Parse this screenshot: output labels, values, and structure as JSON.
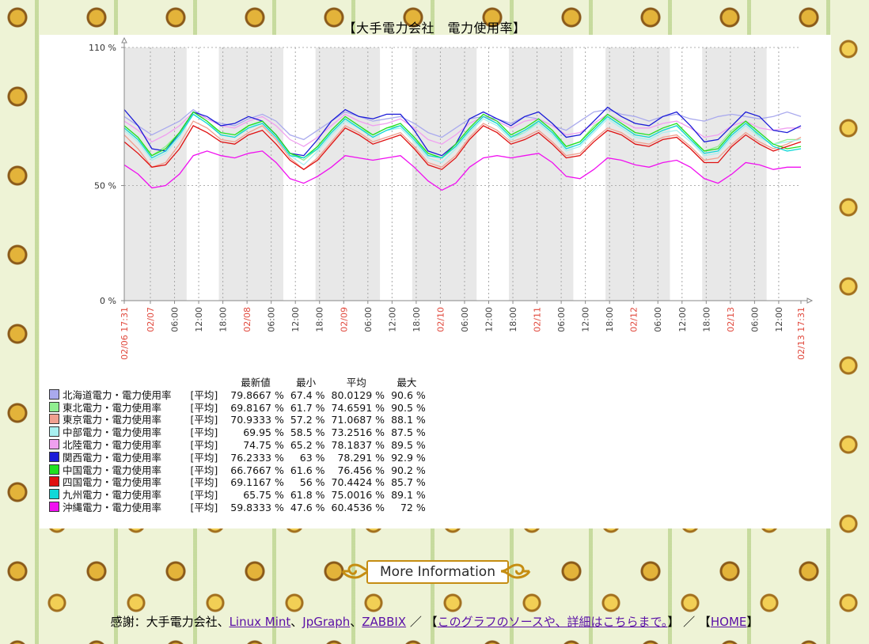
{
  "page_title": "【大手電力会社　電力使用率】",
  "chart_data": {
    "type": "line",
    "y_axis": {
      "min": 0,
      "max": 110,
      "ticks": [
        {
          "value": 0,
          "label": "0 %"
        },
        {
          "value": 50,
          "label": "50 %"
        },
        {
          "value": 110,
          "label": "110 %"
        }
      ]
    },
    "x_axis": {
      "start": "02/06 17:31",
      "end": "02/13 17:31",
      "start_hours": 17.517,
      "end_hours": 185.517,
      "ticks": [
        {
          "h": 17.517,
          "label": "02/06 17:31",
          "red": true
        },
        {
          "h": 24,
          "label": "02/07",
          "red": true
        },
        {
          "h": 30,
          "label": "06:00"
        },
        {
          "h": 36,
          "label": "12:00"
        },
        {
          "h": 42,
          "label": "18:00"
        },
        {
          "h": 48,
          "label": "02/08",
          "red": true
        },
        {
          "h": 54,
          "label": "06:00"
        },
        {
          "h": 60,
          "label": "12:00"
        },
        {
          "h": 66,
          "label": "18:00"
        },
        {
          "h": 72,
          "label": "02/09",
          "red": true
        },
        {
          "h": 78,
          "label": "06:00"
        },
        {
          "h": 84,
          "label": "12:00"
        },
        {
          "h": 90,
          "label": "18:00"
        },
        {
          "h": 96,
          "label": "02/10",
          "red": true
        },
        {
          "h": 102,
          "label": "06:00"
        },
        {
          "h": 108,
          "label": "12:00"
        },
        {
          "h": 114,
          "label": "18:00"
        },
        {
          "h": 120,
          "label": "02/11",
          "red": true
        },
        {
          "h": 126,
          "label": "06:00"
        },
        {
          "h": 132,
          "label": "12:00"
        },
        {
          "h": 138,
          "label": "18:00"
        },
        {
          "h": 144,
          "label": "02/12",
          "red": true
        },
        {
          "h": 150,
          "label": "06:00"
        },
        {
          "h": 156,
          "label": "12:00"
        },
        {
          "h": 162,
          "label": "18:00"
        },
        {
          "h": 168,
          "label": "02/13",
          "red": true
        },
        {
          "h": 174,
          "label": "06:00"
        },
        {
          "h": 180,
          "label": "12:00"
        },
        {
          "h": 185.517,
          "label": "02/13 17:31",
          "red": true
        }
      ]
    },
    "night_bands_hours": [
      [
        17.517,
        33
      ],
      [
        41,
        57
      ],
      [
        65,
        81
      ],
      [
        89,
        105
      ],
      [
        113,
        129
      ],
      [
        137,
        153
      ],
      [
        161,
        177
      ]
    ],
    "series": [
      {
        "name": "北海道電力・電力使用率",
        "color": "#aaaaee",
        "last": "79.8667 %",
        "min": "67.4 %",
        "avg": "80.0129 %",
        "max": "90.6 %",
        "values": [
          80,
          76,
          72,
          75,
          78,
          83,
          79,
          77,
          76,
          79,
          81,
          78,
          72,
          70,
          74,
          78,
          82,
          80,
          78,
          79,
          80,
          77,
          73,
          71,
          75,
          79,
          80,
          79,
          77,
          80,
          79,
          76,
          74,
          78,
          82,
          83,
          81,
          80,
          78,
          80,
          81,
          79,
          78,
          80,
          81,
          80,
          79,
          80,
          82,
          80
        ]
      },
      {
        "name": "東北電力・電力使用率",
        "color": "#90ee90",
        "last": "69.8167 %",
        "min": "61.7 %",
        "avg": "74.6591 %",
        "max": "90.5 %",
        "values": [
          75,
          70,
          63,
          67,
          73,
          82,
          78,
          72,
          71,
          76,
          78,
          72,
          64,
          61,
          66,
          73,
          79,
          75,
          72,
          75,
          76,
          70,
          64,
          62,
          67,
          74,
          80,
          77,
          71,
          73,
          78,
          73,
          67,
          69,
          76,
          80,
          76,
          72,
          71,
          74,
          76,
          70,
          65,
          67,
          74,
          78,
          71,
          68,
          70,
          70
        ]
      },
      {
        "name": "東京電力・電力使用率",
        "color": "#f0a090",
        "last": "70.9333 %",
        "min": "57.2 %",
        "avg": "71.0687 %",
        "max": "88.1 %",
        "values": [
          72,
          66,
          58,
          60,
          68,
          78,
          75,
          70,
          69,
          73,
          76,
          70,
          62,
          57,
          62,
          69,
          76,
          73,
          69,
          71,
          73,
          67,
          60,
          58,
          63,
          71,
          77,
          74,
          69,
          71,
          74,
          69,
          63,
          64,
          70,
          75,
          73,
          69,
          68,
          71,
          72,
          67,
          61,
          62,
          68,
          73,
          69,
          66,
          68,
          71
        ]
      },
      {
        "name": "中部電力・電力使用率",
        "color": "#a8f0f0",
        "last": "69.95 %",
        "min": "58.5 %",
        "avg": "73.2516 %",
        "max": "87.5 %",
        "values": [
          74,
          69,
          61,
          64,
          71,
          81,
          77,
          72,
          71,
          75,
          78,
          71,
          63,
          59,
          65,
          72,
          78,
          75,
          71,
          74,
          75,
          69,
          62,
          60,
          66,
          73,
          79,
          76,
          70,
          73,
          77,
          72,
          65,
          67,
          73,
          79,
          75,
          71,
          70,
          73,
          74,
          69,
          63,
          64,
          71,
          76,
          71,
          68,
          69,
          70
        ]
      },
      {
        "name": "北陸電力・電力使用率",
        "color": "#f0a0f0",
        "last": "74.75 %",
        "min": "65.2 %",
        "avg": "78.1837 %",
        "max": "89.5 %",
        "values": [
          78,
          74,
          69,
          72,
          76,
          82,
          79,
          76,
          75,
          78,
          80,
          76,
          70,
          67,
          71,
          76,
          81,
          78,
          76,
          77,
          79,
          75,
          70,
          68,
          72,
          77,
          80,
          78,
          75,
          78,
          79,
          76,
          72,
          73,
          77,
          81,
          78,
          75,
          75,
          77,
          78,
          75,
          71,
          72,
          76,
          78,
          75,
          74,
          75,
          75
        ]
      },
      {
        "name": "関西電力・電力使用率",
        "color": "#1c1cd8",
        "last": "76.2333 %",
        "min": "63 %",
        "avg": "78.291 %",
        "max": "92.9 %",
        "values": [
          83,
          76,
          66,
          65,
          73,
          82,
          80,
          76,
          77,
          80,
          78,
          72,
          64,
          63,
          70,
          78,
          83,
          80,
          79,
          81,
          81,
          74,
          65,
          63,
          68,
          79,
          82,
          79,
          76,
          80,
          82,
          77,
          71,
          72,
          78,
          84,
          80,
          77,
          76,
          80,
          82,
          76,
          69,
          70,
          76,
          82,
          80,
          74,
          73,
          76
        ]
      },
      {
        "name": "中国電力・電力使用率",
        "color": "#20e020",
        "last": "66.7667 %",
        "min": "61.6 %",
        "avg": "76.456 %",
        "max": "90.2 %",
        "values": [
          76,
          71,
          63,
          66,
          73,
          82,
          78,
          73,
          72,
          76,
          78,
          72,
          64,
          62,
          67,
          74,
          80,
          76,
          72,
          75,
          77,
          71,
          64,
          62,
          68,
          75,
          81,
          78,
          72,
          75,
          79,
          74,
          67,
          69,
          75,
          81,
          77,
          73,
          72,
          75,
          77,
          71,
          65,
          66,
          73,
          78,
          73,
          68,
          66,
          67
        ]
      },
      {
        "name": "四国電力・電力使用率",
        "color": "#e01010",
        "last": "69.1167 %",
        "min": "56 %",
        "avg": "70.4424 %",
        "max": "85.7 %",
        "values": [
          69,
          64,
          58,
          59,
          66,
          76,
          73,
          69,
          68,
          72,
          74,
          68,
          61,
          57,
          61,
          68,
          75,
          72,
          68,
          70,
          72,
          66,
          59,
          57,
          62,
          70,
          76,
          73,
          68,
          70,
          73,
          68,
          62,
          63,
          69,
          74,
          72,
          68,
          67,
          70,
          71,
          66,
          60,
          60,
          67,
          72,
          68,
          65,
          67,
          69
        ]
      },
      {
        "name": "九州電力・電力使用率",
        "color": "#10d8d8",
        "last": "65.75 %",
        "min": "61.8 %",
        "avg": "75.0016 %",
        "max": "89.1 %",
        "values": [
          75,
          70,
          62,
          65,
          72,
          81,
          77,
          72,
          71,
          75,
          77,
          71,
          63,
          62,
          66,
          73,
          79,
          75,
          71,
          74,
          76,
          70,
          63,
          62,
          67,
          74,
          80,
          77,
          71,
          74,
          78,
          73,
          66,
          68,
          74,
          80,
          76,
          72,
          71,
          74,
          76,
          70,
          64,
          65,
          72,
          77,
          72,
          67,
          65,
          66
        ]
      },
      {
        "name": "沖縄電力・電力使用率",
        "color": "#f010f0",
        "last": "59.8333 %",
        "min": "47.6 %",
        "avg": "60.4536 %",
        "max": "72 %",
        "values": [
          59,
          55,
          49,
          50,
          55,
          63,
          65,
          63,
          62,
          64,
          65,
          60,
          53,
          51,
          54,
          58,
          63,
          62,
          61,
          62,
          63,
          58,
          52,
          48,
          51,
          58,
          62,
          63,
          62,
          63,
          64,
          60,
          54,
          53,
          57,
          62,
          61,
          59,
          58,
          60,
          61,
          58,
          53,
          51,
          55,
          60,
          59,
          57,
          58,
          58
        ]
      }
    ]
  },
  "legend": {
    "tag": "[平均]",
    "headers": {
      "last": "最新値",
      "min": "最小",
      "avg": "平均",
      "max": "最大"
    }
  },
  "more_button_label": "More Information",
  "footer": {
    "prefix": "感謝：大手電力会社、",
    "link_mint": "Linux Mint",
    "sep1": "、",
    "link_jpgraph": "JpGraph",
    "sep2": "、",
    "link_zabbix": "ZABBIX",
    "mid": " ／ 【",
    "link_source": "このグラフのソースや、詳細はこちらまで。",
    "mid2": "】 ／ 【",
    "link_home": "HOME",
    "suffix": "】"
  }
}
